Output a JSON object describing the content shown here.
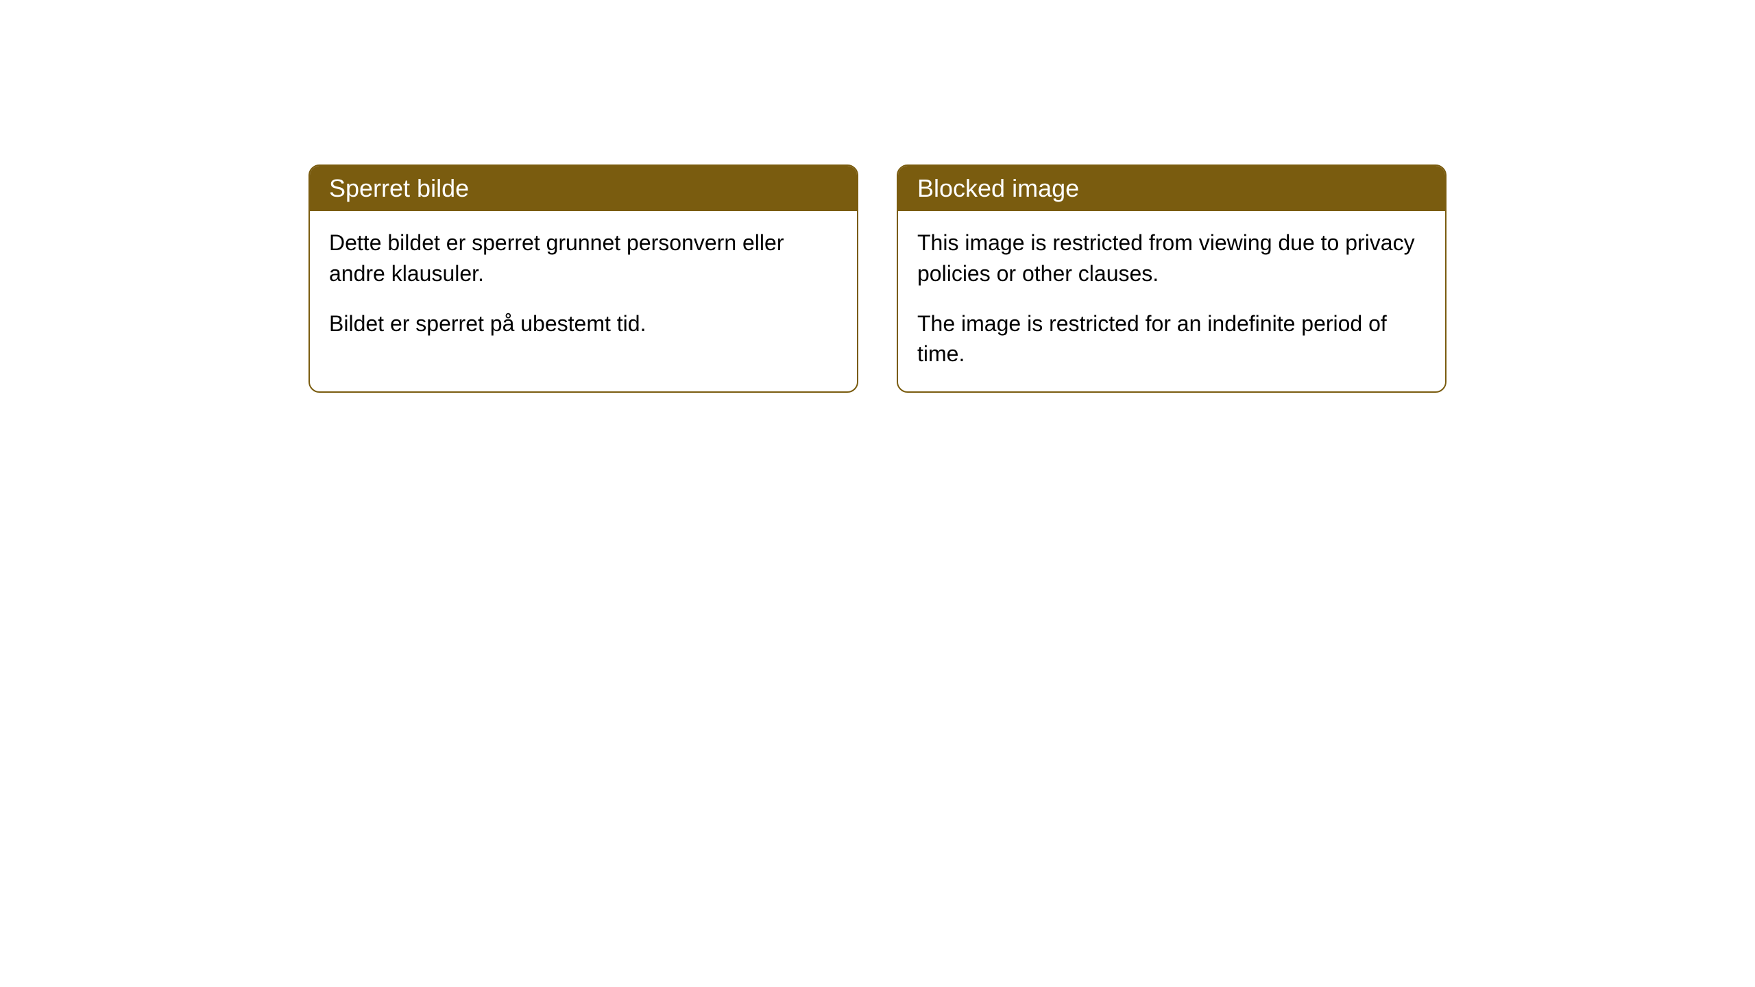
{
  "cards": {
    "left": {
      "title": "Sperret bilde",
      "paragraph1": "Dette bildet er sperret grunnet personvern eller andre klausuler.",
      "paragraph2": "Bildet er sperret på ubestemt tid."
    },
    "right": {
      "title": "Blocked image",
      "paragraph1": "This image is restricted from viewing due to privacy policies or other clauses.",
      "paragraph2": "The image is restricted for an indefinite period of time."
    }
  },
  "styling": {
    "header_bg_color": "#7a5c0f",
    "header_text_color": "#ffffff",
    "border_color": "#7a5c0f",
    "body_bg_color": "#ffffff",
    "body_text_color": "#000000",
    "border_radius": 16,
    "border_width": 2,
    "header_fontsize": 36,
    "body_fontsize": 32
  }
}
